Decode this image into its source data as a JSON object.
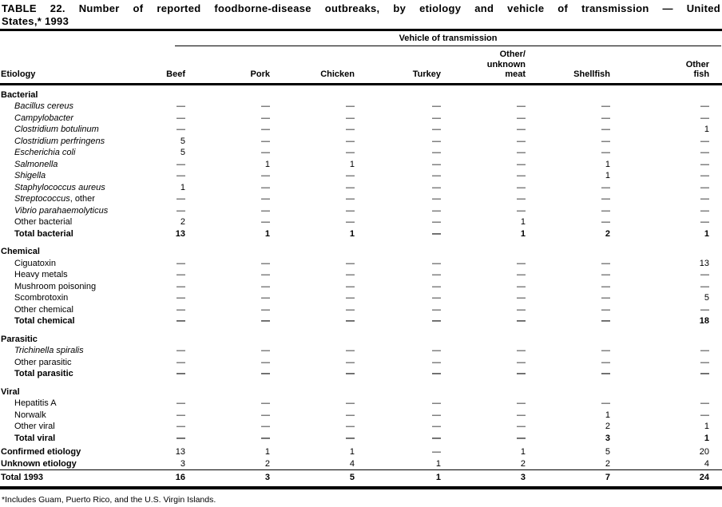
{
  "title_lines": [
    "TABLE 22. Number of reported foodborne-disease outbreaks, by etiology and vehicle of transmission — United",
    "States,* 1993"
  ],
  "footnote": "*Includes Guam, Puerto Rico, and the U.S. Virgin Islands.",
  "table": {
    "spanner": "Vehicle of transmission",
    "row_header": "Etiology",
    "columns": [
      {
        "lines": [
          "Beef"
        ]
      },
      {
        "lines": [
          "Pork"
        ]
      },
      {
        "lines": [
          "Chicken"
        ]
      },
      {
        "lines": [
          "Turkey"
        ]
      },
      {
        "lines": [
          "Other/",
          "unknown",
          "meat"
        ]
      },
      {
        "lines": [
          "Shellfish"
        ]
      },
      {
        "lines": [
          "Other",
          "fish"
        ]
      }
    ],
    "sections": [
      {
        "heading": "Bacterial",
        "rows": [
          {
            "label": "Bacillus cereus",
            "italic": true,
            "values": [
              "—",
              "—",
              "—",
              "—",
              "—",
              "—",
              "—"
            ]
          },
          {
            "label": "Campylobacter",
            "italic": true,
            "values": [
              "—",
              "—",
              "—",
              "—",
              "—",
              "—",
              "—"
            ]
          },
          {
            "label": "Clostridium botulinum",
            "italic": true,
            "values": [
              "—",
              "—",
              "—",
              "—",
              "—",
              "—",
              "1"
            ]
          },
          {
            "label": "Clostridium perfringens",
            "italic": true,
            "values": [
              "5",
              "—",
              "—",
              "—",
              "—",
              "—",
              "—"
            ]
          },
          {
            "label": "Escherichia coli",
            "italic": true,
            "values": [
              "5",
              "—",
              "—",
              "—",
              "—",
              "—",
              "—"
            ]
          },
          {
            "label": "Salmonella",
            "italic": true,
            "values": [
              "—",
              "1",
              "1",
              "—",
              "—",
              "1",
              "—"
            ]
          },
          {
            "label": "Shigella",
            "italic": true,
            "values": [
              "—",
              "—",
              "—",
              "—",
              "—",
              "1",
              "—"
            ]
          },
          {
            "label": "Staphylococcus aureus",
            "italic": true,
            "values": [
              "1",
              "—",
              "—",
              "—",
              "—",
              "—",
              "—"
            ]
          },
          {
            "label": "Streptococcus",
            "suffix": ", other",
            "italic": true,
            "values": [
              "—",
              "—",
              "—",
              "—",
              "—",
              "—",
              "—"
            ]
          },
          {
            "label": "Vibrio parahaemolyticus",
            "italic": true,
            "values": [
              "—",
              "—",
              "—",
              "—",
              "—",
              "—",
              "—"
            ]
          },
          {
            "label": "Other bacterial",
            "values": [
              "2",
              "—",
              "—",
              "—",
              "1",
              "—",
              "—"
            ]
          },
          {
            "label": "Total bacterial",
            "bold": true,
            "values": [
              "13",
              "1",
              "1",
              "—",
              "1",
              "2",
              "1"
            ]
          }
        ]
      },
      {
        "heading": "Chemical",
        "rows": [
          {
            "label": "Ciguatoxin",
            "values": [
              "—",
              "—",
              "—",
              "—",
              "—",
              "—",
              "13"
            ]
          },
          {
            "label": "Heavy metals",
            "values": [
              "—",
              "—",
              "—",
              "—",
              "—",
              "—",
              "—"
            ]
          },
          {
            "label": "Mushroom poisoning",
            "values": [
              "—",
              "—",
              "—",
              "—",
              "—",
              "—",
              "—"
            ]
          },
          {
            "label": "Scombrotoxin",
            "values": [
              "—",
              "—",
              "—",
              "—",
              "—",
              "—",
              "5"
            ]
          },
          {
            "label": "Other chemical",
            "values": [
              "—",
              "—",
              "—",
              "—",
              "—",
              "—",
              "—"
            ]
          },
          {
            "label": "Total chemical",
            "bold": true,
            "values": [
              "—",
              "—",
              "—",
              "—",
              "—",
              "—",
              "18"
            ]
          }
        ]
      },
      {
        "heading": "Parasitic",
        "rows": [
          {
            "label": "Trichinella spiralis",
            "italic": true,
            "values": [
              "—",
              "—",
              "—",
              "—",
              "—",
              "—",
              "—"
            ]
          },
          {
            "label": "Other parasitic",
            "values": [
              "—",
              "—",
              "—",
              "—",
              "—",
              "—",
              "—"
            ]
          },
          {
            "label": "Total parasitic",
            "bold": true,
            "values": [
              "—",
              "—",
              "—",
              "—",
              "—",
              "—",
              "—"
            ]
          }
        ]
      },
      {
        "heading": "Viral",
        "rows": [
          {
            "label": "Hepatitis A",
            "values": [
              "—",
              "—",
              "—",
              "—",
              "—",
              "—",
              "—"
            ]
          },
          {
            "label": "Norwalk",
            "values": [
              "—",
              "—",
              "—",
              "—",
              "—",
              "1",
              "—"
            ]
          },
          {
            "label": "Other viral",
            "values": [
              "—",
              "—",
              "—",
              "—",
              "—",
              "2",
              "1"
            ]
          },
          {
            "label": "Total viral",
            "bold": true,
            "values": [
              "—",
              "—",
              "—",
              "—",
              "—",
              "3",
              "1"
            ]
          }
        ]
      }
    ],
    "summary_rows": [
      {
        "label": "Confirmed etiology",
        "values": [
          "13",
          "1",
          "1",
          "—",
          "1",
          "5",
          "20"
        ]
      },
      {
        "label": "Unknown etiology",
        "values": [
          "3",
          "2",
          "4",
          "1",
          "2",
          "2",
          "4"
        ]
      }
    ],
    "grand_total": {
      "label": "Total 1993",
      "values": [
        "16",
        "3",
        "5",
        "1",
        "3",
        "7",
        "24"
      ]
    }
  }
}
